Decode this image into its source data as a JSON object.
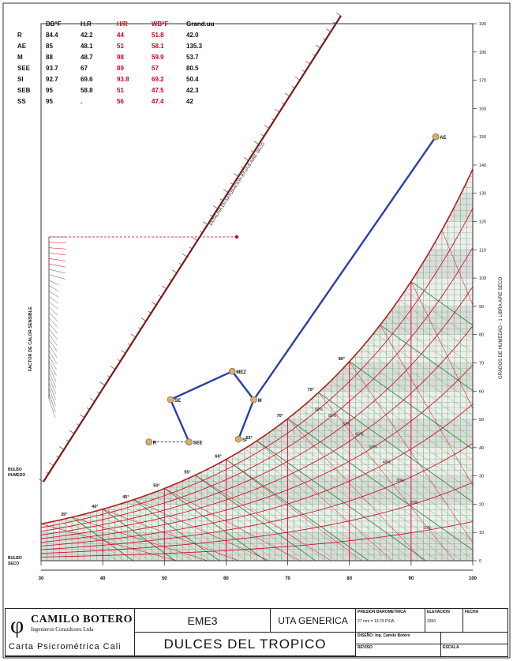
{
  "table": {
    "headers": [
      "DB°F",
      "H.R",
      "H/R",
      "WB°F",
      "Grand.uu"
    ],
    "rows": [
      {
        "id": "R",
        "cells": [
          "84.4",
          "42.2",
          "44",
          "51.8",
          "42.0"
        ]
      },
      {
        "id": "AE",
        "cells": [
          "85",
          "48.1",
          "51",
          "58.1",
          "135.3"
        ]
      },
      {
        "id": "M",
        "cells": [
          "88",
          "48.7",
          "98",
          "59.9",
          "53.7"
        ]
      },
      {
        "id": "SEE",
        "cells": [
          "93.7",
          "67",
          "89",
          "57",
          "80.5"
        ]
      },
      {
        "id": "SI",
        "cells": [
          "92.7",
          "69.6",
          "93.8",
          "69.2",
          "50.4"
        ]
      },
      {
        "id": "SEB",
        "cells": [
          "95",
          "58.8",
          "51",
          "47.5",
          "42.3"
        ]
      },
      {
        "id": "SS",
        "cells": [
          "95",
          ".",
          "56",
          "47.4",
          "42"
        ]
      }
    ]
  },
  "chart_data": {
    "type": "scatter",
    "title": "",
    "xlabel": "BULBO SECO",
    "ylabel": "GRADOS DE HUMEDAD - 1 LIBRA AIRE SECO",
    "xlim": [
      30,
      100
    ],
    "ylim": [
      0,
      190
    ],
    "x_ticks": [
      "30",
      "40",
      "50",
      "60",
      "70",
      "80",
      "90",
      "100"
    ],
    "y_ticks": [
      "0",
      "10",
      "20",
      "30",
      "40",
      "50",
      "60",
      "70",
      "80",
      "90",
      "100",
      "110",
      "120",
      "130",
      "140",
      "150",
      "160",
      "170",
      "180",
      "190"
    ],
    "left_label_top": "FACTOR DE CALOR SENSIBLE",
    "left_label_bottom": [
      "BULBO",
      "HUMEDO"
    ],
    "dry_bulb_label": [
      "BULBO",
      "SECO"
    ],
    "enthalpy_label": "ENTALPIA EN SATURACION BTU/LB AIRE SECO",
    "wet_bulb_labels": [
      "35°",
      "40°",
      "45°",
      "50°",
      "55°",
      "60°",
      "65°",
      "70°",
      "75°",
      "80°"
    ],
    "rh_labels": [
      "10%",
      "20%",
      "30%",
      "40%",
      "50%",
      "60%",
      "70%",
      "80%",
      "90%"
    ],
    "points": [
      {
        "label": "AE",
        "x": 94.0,
        "y": 150
      },
      {
        "label": "R",
        "x": 47.5,
        "y": 42
      },
      {
        "label": "SEE",
        "x": 54.0,
        "y": 42
      },
      {
        "label": "SE",
        "x": 51.0,
        "y": 57
      },
      {
        "label": "MEZ",
        "x": 61.0,
        "y": 67
      },
      {
        "label": "M",
        "x": 64.5,
        "y": 57
      },
      {
        "label": "SI",
        "x": 62.0,
        "y": 43
      }
    ],
    "process_lines": [
      [
        "SEE",
        "SE"
      ],
      [
        "SE",
        "MEZ"
      ],
      [
        "MEZ",
        "M"
      ],
      [
        "M",
        "SI"
      ],
      [
        "M",
        "AE"
      ]
    ],
    "dashed_lines": [
      [
        "R",
        "SEE"
      ]
    ],
    "colors": {
      "process": "#2b3fa8",
      "dry_bulb": "#d2001e",
      "wet_bulb": "#3cb43c",
      "saturation": "#b41e1e"
    }
  },
  "title_block": {
    "company": "CAMILO BOTERO",
    "company_sub": "Ingenieros Consultores Ltda",
    "chart_name": "Carta Psicrométrica Cali",
    "project_code": "EME3",
    "unit": "UTA GENERICA",
    "client": "DULCES DEL TROPICO",
    "presion_label": "PRESION BAROMETRICA",
    "presion_value": "27 mm = 13.29 PSIA",
    "elevacion_label": "ELEVACION",
    "elevacion_value": "3350",
    "fecha_label": "FECHA",
    "diseno": "DISEÑO: Ing. Camilo Botero",
    "reviso": "REVISO",
    "escala": "ESCALA"
  }
}
